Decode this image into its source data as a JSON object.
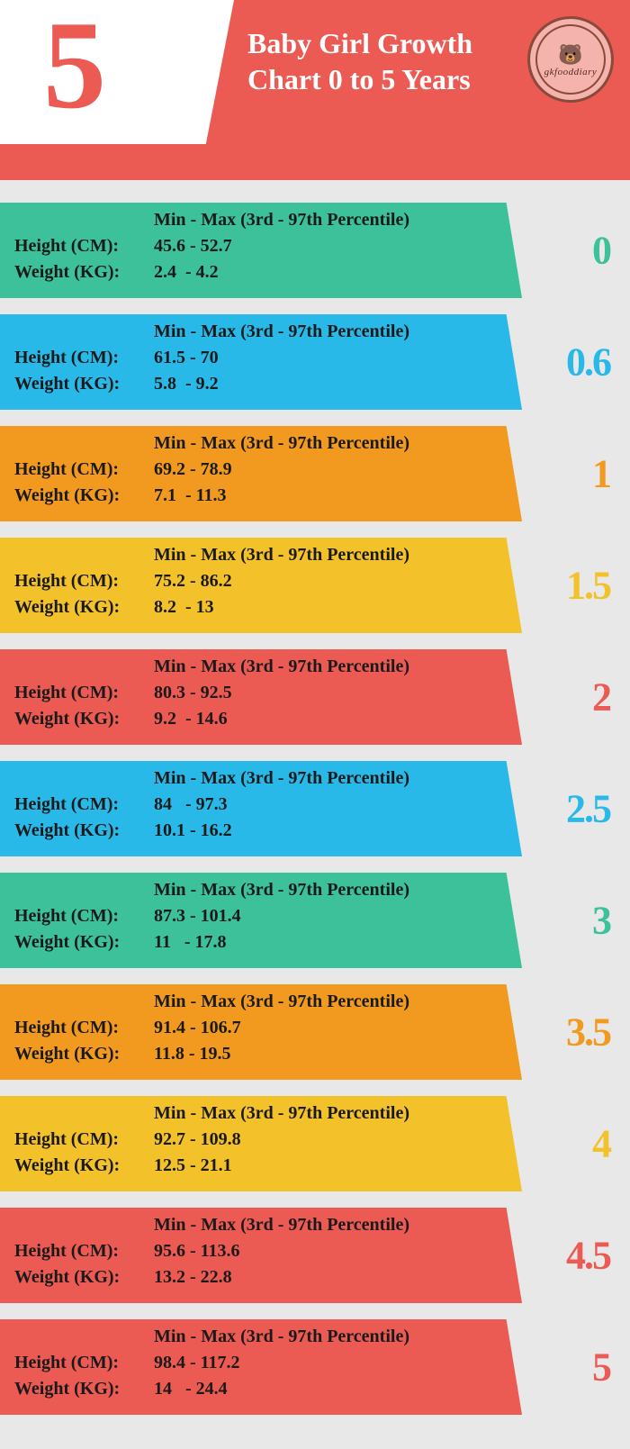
{
  "header": {
    "big_number": "5",
    "title_line1": "Baby Girl Growth",
    "title_line2": "Chart 0 to 5 Years",
    "badge_text": "gkfooddiary",
    "header_bg": "#ec5a54",
    "big_number_color": "#ec5a54"
  },
  "labels": {
    "minmax": "Min  - Max (3rd  - 97th Percentile)",
    "height": "Height (CM):",
    "weight": "Weight (KG):"
  },
  "colors": {
    "teal": "#3cc19a",
    "blue": "#29b9e9",
    "orange": "#f29a1f",
    "yellow": "#f3c12a",
    "red": "#ec5a54",
    "page_bg": "#e8e8e8",
    "text": "#1a1a1a"
  },
  "rows": [
    {
      "age": "0",
      "bar_color": "#3cc19a",
      "age_color": "#3cc19a",
      "h_min": "45.6",
      "h_max": "52.7",
      "w_min": "2.4",
      "w_max": "4.2"
    },
    {
      "age": "0.6",
      "bar_color": "#29b9e9",
      "age_color": "#29b9e9",
      "h_min": "61.5",
      "h_max": "70",
      "w_min": "5.8",
      "w_max": "9.2"
    },
    {
      "age": "1",
      "bar_color": "#f29a1f",
      "age_color": "#f29a1f",
      "h_min": "69.2",
      "h_max": "78.9",
      "w_min": "7.1",
      "w_max": "11.3"
    },
    {
      "age": "1.5",
      "bar_color": "#f3c12a",
      "age_color": "#f3c12a",
      "h_min": "75.2",
      "h_max": "86.2",
      "w_min": "8.2",
      "w_max": "13"
    },
    {
      "age": "2",
      "bar_color": "#ec5a54",
      "age_color": "#ec5a54",
      "h_min": "80.3",
      "h_max": "92.5",
      "w_min": "9.2",
      "w_max": "14.6"
    },
    {
      "age": "2.5",
      "bar_color": "#29b9e9",
      "age_color": "#29b9e9",
      "h_min": "84",
      "h_max": "97.3",
      "w_min": "10.1",
      "w_max": "16.2"
    },
    {
      "age": "3",
      "bar_color": "#3cc19a",
      "age_color": "#3cc19a",
      "h_min": "87.3",
      "h_max": "101.4",
      "w_min": "11",
      "w_max": "17.8"
    },
    {
      "age": "3.5",
      "bar_color": "#f29a1f",
      "age_color": "#f29a1f",
      "h_min": "91.4",
      "h_max": "106.7",
      "w_min": "11.8",
      "w_max": "19.5"
    },
    {
      "age": "4",
      "bar_color": "#f3c12a",
      "age_color": "#f3c12a",
      "h_min": "92.7",
      "h_max": "109.8",
      "w_min": "12.5",
      "w_max": "21.1"
    },
    {
      "age": "4.5",
      "bar_color": "#ec5a54",
      "age_color": "#ec5a54",
      "h_min": "95.6",
      "h_max": "113.6",
      "w_min": "13.2",
      "w_max": "22.8"
    },
    {
      "age": "5",
      "bar_color": "#ec5a54",
      "age_color": "#ec5a54",
      "h_min": "98.4",
      "h_max": "117.2",
      "w_min": "14",
      "w_max": "24.4"
    }
  ]
}
